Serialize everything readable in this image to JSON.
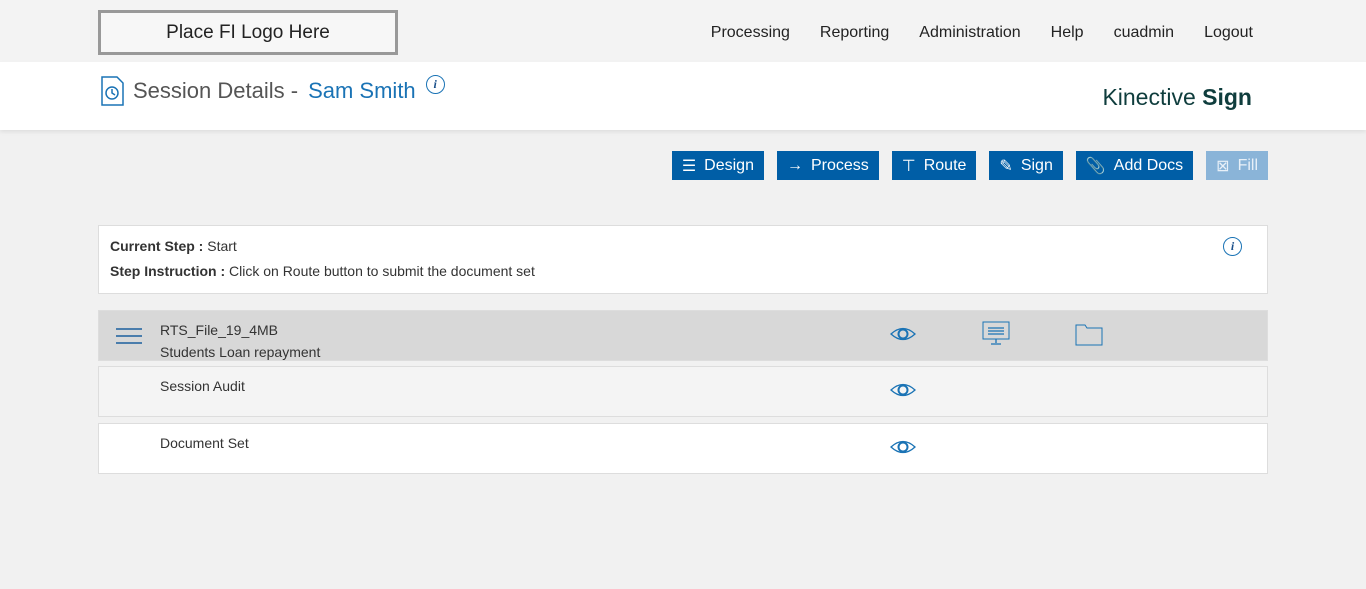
{
  "header": {
    "logo": "Place FI Logo Here",
    "nav": [
      "Processing",
      "Reporting",
      "Administration",
      "Help",
      "cuadmin",
      "Logout"
    ]
  },
  "page": {
    "title": "Session Details -",
    "name": "Sam Smith",
    "brand_light": "Kinective",
    "brand_bold": "Sign"
  },
  "toolbar": {
    "design": "Design",
    "process": "Process",
    "route": "Route",
    "sign": "Sign",
    "add_docs": "Add Docs",
    "fill": "Fill"
  },
  "step": {
    "current_label": "Current Step :",
    "current": "Start",
    "instr_label": "Step Instruction :",
    "instr": "Click on Route button to submit the document set"
  },
  "rows": [
    {
      "name": "RTS_File_19_4MB",
      "desc": "Students Loan repayment"
    },
    {
      "name": "Session Audit"
    },
    {
      "name": "Document Set"
    }
  ],
  "colors": {
    "accent": "#005ea6",
    "disabled": "#8ab4d8"
  }
}
